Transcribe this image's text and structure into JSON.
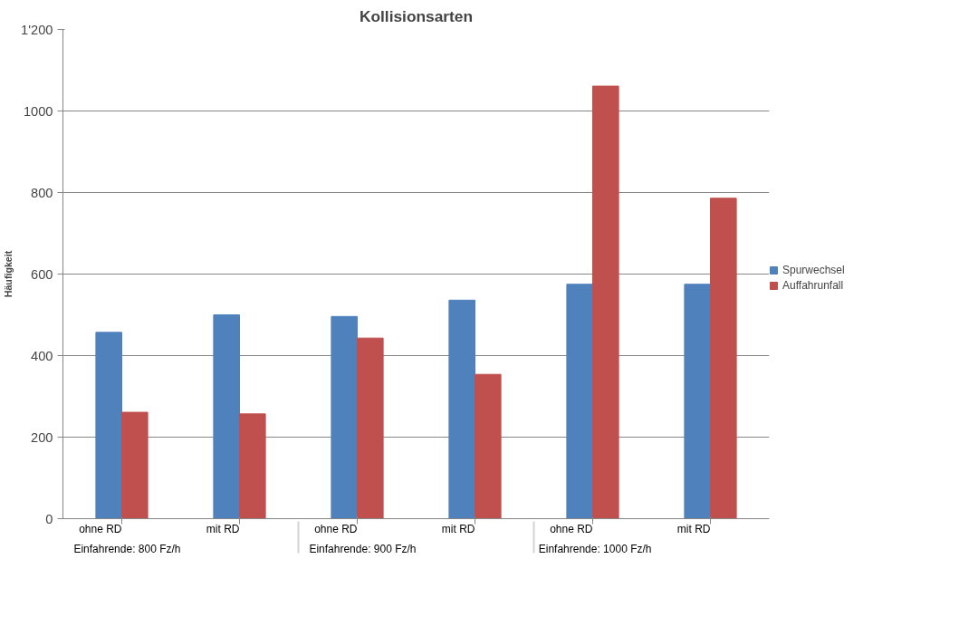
{
  "chart_data": {
    "type": "bar",
    "title": "Kollisionsarten",
    "ylabel": "Häufigkeit",
    "categories": [
      "ohne RD",
      "mit RD",
      "ohne RD",
      "mit RD",
      "ohne RD",
      "mit RD"
    ],
    "annotations": [
      "Einfahrende: 800 Fz/h",
      "Einfahrende: 900 Fz/h",
      "Einfahrende: 1000 Fz/h"
    ],
    "series": [
      {
        "name": "Spurwechsel",
        "color": "#4f81bd",
        "values": [
          457,
          500,
          496,
          536,
          575,
          575
        ]
      },
      {
        "name": "Auffahrunfall",
        "color": "#c0504d",
        "values": [
          261,
          257,
          443,
          354,
          1061,
          786
        ]
      }
    ],
    "ylim": [
      0,
      1200
    ],
    "yticks": [
      0,
      200,
      400,
      600,
      800,
      1000,
      {
        "value": 1200,
        "label": "1'200"
      }
    ],
    "grid": "y",
    "legend": "right"
  }
}
